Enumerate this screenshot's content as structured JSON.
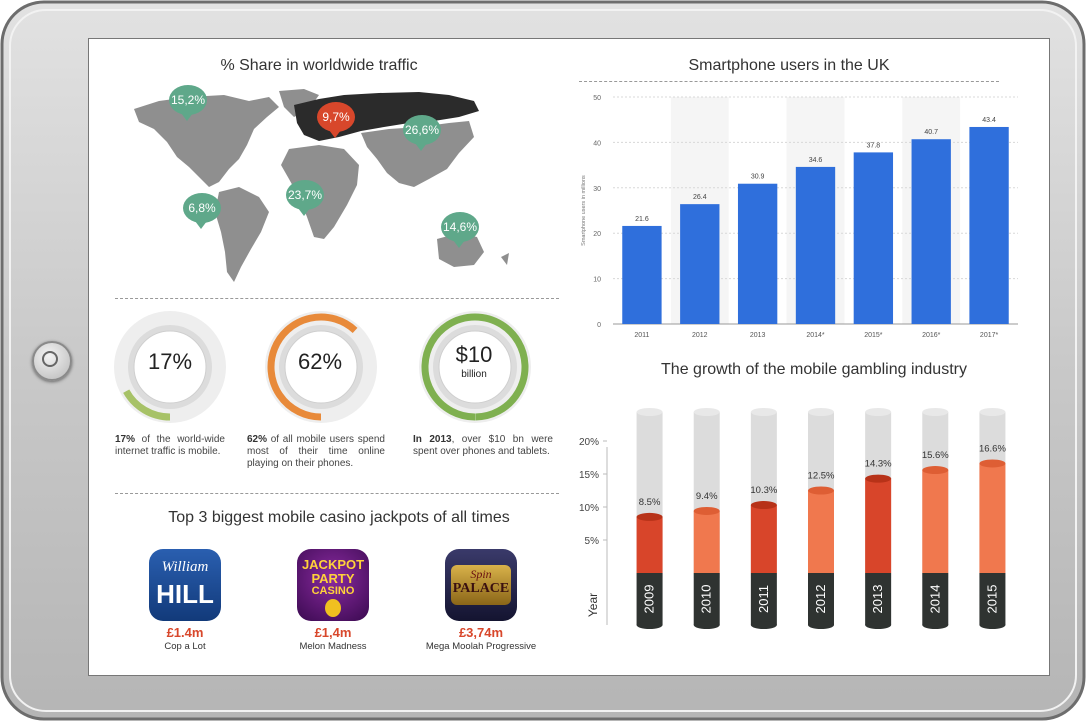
{
  "map_section": {
    "title": "% Share in worldwide traffic",
    "bubbles": [
      {
        "label": "15,2%",
        "color": "#5fa88a"
      },
      {
        "label": "9,7%",
        "color": "#d8472b"
      },
      {
        "label": "26,6%",
        "color": "#5fa88a"
      },
      {
        "label": "23,7%",
        "color": "#5fa88a"
      },
      {
        "label": "6,8%",
        "color": "#5fa88a"
      },
      {
        "label": "14,6%",
        "color": "#5fa88a"
      }
    ]
  },
  "stats": [
    {
      "value": "17%",
      "sub": "",
      "bold": "17%",
      "text": " of the world-wide internet traffic is mobile.",
      "fraction": 0.17
    },
    {
      "value": "62%",
      "sub": "",
      "bold": "62%",
      "text": " of all mobile users spend most of their time online playing on their phones.",
      "fraction": 0.62
    },
    {
      "value": "$10",
      "sub": "billion",
      "bold": "In 2013",
      "text": ", over $10 bn were spent over phones and tablets.",
      "fraction": 1.0
    }
  ],
  "jackpots": {
    "title": "Top 3 biggest mobile casino jackpots of all times",
    "items": [
      {
        "brand": "William HILL",
        "brand_line1": "William",
        "brand_line2": "HILL",
        "amount": "£1.4m",
        "game": "Cop a Lot"
      },
      {
        "brand": "JACKPOT PARTY CASINO",
        "brand_line1": "JACKPOT",
        "brand_line2": "PARTY",
        "brand_line3": "CASINO",
        "amount": "£1,4m",
        "game": "Melon Madness"
      },
      {
        "brand": "Spin PALACE",
        "brand_line1": "Spin",
        "brand_line2": "PALACE",
        "amount": "£3,74m",
        "game": "Mega Moolah Progressive"
      }
    ]
  },
  "chart_data": [
    {
      "type": "bar",
      "title": "Smartphone users in the UK",
      "ylabel": "Smartphone users in millions",
      "xlabel": "",
      "categories": [
        "2011",
        "2012",
        "2013",
        "2014*",
        "2015*",
        "2016*",
        "2017*"
      ],
      "values": [
        21.6,
        26.4,
        30.9,
        34.6,
        37.8,
        40.7,
        43.4
      ],
      "value_labels": [
        "21.6",
        "26.4",
        "30.9",
        "34.6",
        "37.8",
        "40.7",
        "43.4"
      ],
      "ylim": [
        0,
        50
      ],
      "yticks": [
        "0",
        "10",
        "20",
        "30",
        "40",
        "50"
      ],
      "grid": true,
      "color": "#2f6fdc"
    },
    {
      "type": "bar",
      "title": "The growth of the mobile gambling industry",
      "xlabel": "Year",
      "categories": [
        "2009",
        "2010",
        "2011",
        "2012",
        "2013",
        "2014",
        "2015"
      ],
      "values": [
        8.5,
        9.4,
        10.3,
        12.5,
        14.3,
        15.6,
        16.6
      ],
      "value_labels": [
        "8.5%",
        "9.4%",
        "10.3%",
        "12.5%",
        "14.3%",
        "15.6%",
        "16.6%"
      ],
      "ylim": [
        0,
        25
      ],
      "yticks": [
        "5%",
        "10%",
        "15%",
        "20%"
      ],
      "grid": false,
      "colors": [
        "#d8452a",
        "#f0784e",
        "#d8452a",
        "#f0784e",
        "#d8452a",
        "#f0784e",
        "#f0784e"
      ]
    }
  ]
}
